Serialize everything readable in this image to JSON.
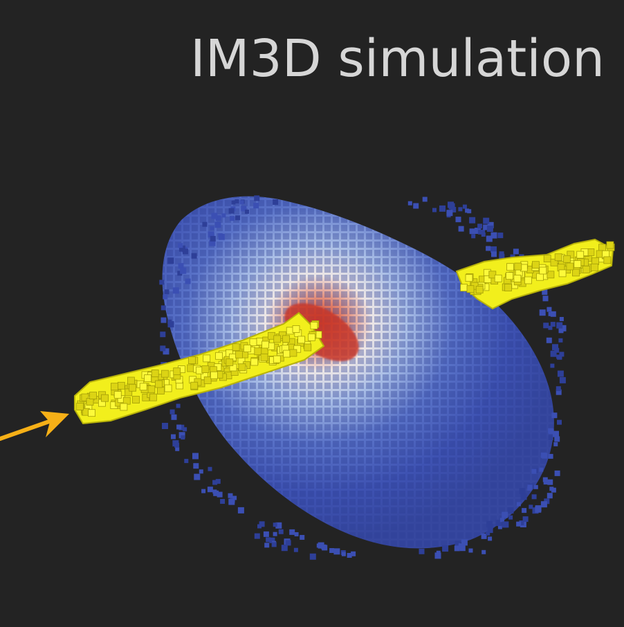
{
  "title": "IM3D simulation",
  "colors": {
    "background": "#232323",
    "damage_cloud_outer": "#3a4fb0",
    "damage_cloud_mid": "#e9eef6",
    "damage_core": "#c43a2c",
    "ion_track": "#f2ef1c",
    "incident_arrow": "#f6b017",
    "title_text": "#d6d6d6"
  }
}
